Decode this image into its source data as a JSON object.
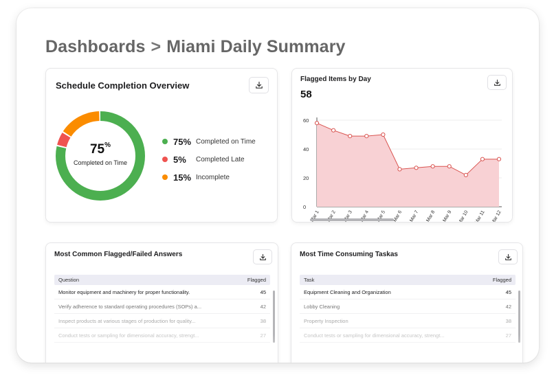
{
  "breadcrumb": {
    "root": "Dashboards",
    "separator": ">",
    "current": "Miami Daily Summary"
  },
  "schedule_card": {
    "title": "Schedule Completion Overview",
    "download_icon": "download-icon",
    "center_value": "75",
    "center_unit": "%",
    "center_label": "Completed on Time",
    "legend": [
      {
        "pct": "75%",
        "label": "Completed on Time",
        "color": "#4caf50",
        "value": 75
      },
      {
        "pct": "5%",
        "label": "Completed Late",
        "color": "#ef5350",
        "value": 5
      },
      {
        "pct": "15%",
        "label": "Incomplete",
        "color": "#fb8c00",
        "value": 15
      }
    ]
  },
  "flagged_card": {
    "title": "Flagged Items by Day",
    "total": "58",
    "download_icon": "download-icon"
  },
  "chart_data": {
    "type": "area",
    "categories": [
      "Mar 1",
      "Mar 2",
      "Mar 3",
      "Mar 4",
      "Mar 5",
      "Mar 6",
      "Mar 7",
      "Mar 8",
      "Mar 9",
      "Mar 10",
      "Mar 11",
      "Mar 12"
    ],
    "values": [
      58,
      53,
      49,
      49,
      50,
      26,
      27,
      28,
      28,
      22,
      33,
      33
    ],
    "yticks": [
      "0",
      "20",
      "40",
      "60"
    ],
    "ylim": [
      0,
      60
    ],
    "line_color": "#d9534f",
    "fill_color": "#f8d1d4",
    "grid": true
  },
  "common_card": {
    "title": "Most Common Flagged/Failed Answers",
    "col_question": "Question",
    "col_flagged": "Flagged",
    "rows": [
      {
        "text": "Monitor equipment and machinery for proper functionality.",
        "count": "45"
      },
      {
        "text": "Verify adherence to standard operating procedures (SOPs) a...",
        "count": "42"
      },
      {
        "text": "Inspect products at various stages of production for quality...",
        "count": "38"
      },
      {
        "text": "Conduct tests or sampling for dimensional accuracy, strengt...",
        "count": "27"
      }
    ]
  },
  "time_card": {
    "title": "Most Time Consuming Taskas",
    "col_task": "Task",
    "col_flagged": "Flagged",
    "rows": [
      {
        "text": "Equipment Cleaning and Organization",
        "count": "45"
      },
      {
        "text": "Lobby Cleaning",
        "count": "42"
      },
      {
        "text": "Property Inspection",
        "count": "38"
      },
      {
        "text": "Conduct tests or sampling for dimensional accuracy, strengt...",
        "count": "27"
      }
    ]
  }
}
